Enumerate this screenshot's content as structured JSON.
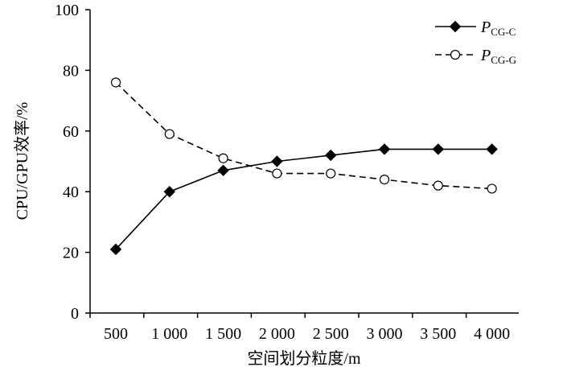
{
  "chart_data": {
    "type": "line",
    "categories": [
      "500",
      "1 000",
      "1 500",
      "2 000",
      "2 500",
      "3 000",
      "3 500",
      "4 000"
    ],
    "series": [
      {
        "name_main": "P",
        "name_sub": "CG-C",
        "marker": "filled-diamond",
        "line_style": "solid",
        "values": [
          21,
          40,
          47,
          50,
          52,
          54,
          54,
          54
        ]
      },
      {
        "name_main": "P",
        "name_sub": "CG-G",
        "marker": "open-circle",
        "line_style": "dashed",
        "values": [
          76,
          59,
          51,
          46,
          46,
          44,
          42,
          41
        ]
      }
    ],
    "ylim": [
      0,
      100
    ],
    "yticks": [
      0,
      20,
      40,
      60,
      80,
      100
    ],
    "xlabel": "空间划分粒度/m",
    "ylabel": "CPU/GPU效率/%",
    "grid": false,
    "legend_position": "top-right",
    "colors": {
      "line": "#000000",
      "background": "#ffffff"
    }
  }
}
